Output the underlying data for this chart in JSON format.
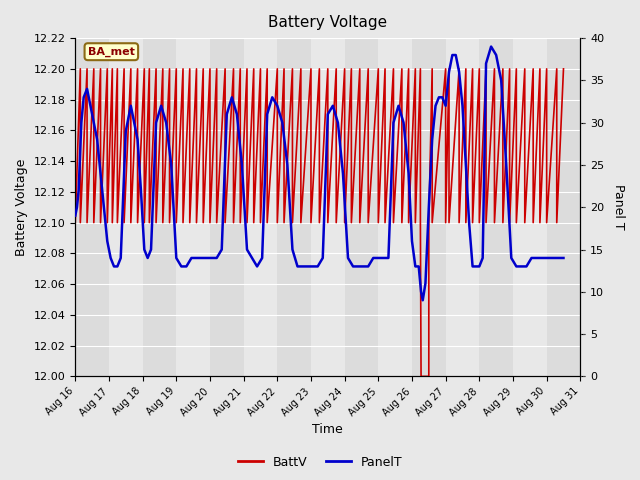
{
  "title": "Battery Voltage",
  "xlabel": "Time",
  "ylabel_left": "Battery Voltage",
  "ylabel_right": "Panel T",
  "annotation": "BA_met",
  "xlim_days": [
    16,
    31
  ],
  "ylim_left": [
    12.0,
    12.22
  ],
  "ylim_right": [
    0,
    40
  ],
  "yticks_left": [
    12.0,
    12.02,
    12.04,
    12.06,
    12.08,
    12.1,
    12.12,
    12.14,
    12.16,
    12.18,
    12.2,
    12.22
  ],
  "yticks_right": [
    0,
    5,
    10,
    15,
    20,
    25,
    30,
    35,
    40
  ],
  "xtick_labels": [
    "Aug 16",
    "Aug 17",
    "Aug 18",
    "Aug 19",
    "Aug 20",
    "Aug 21",
    "Aug 22",
    "Aug 23",
    "Aug 24",
    "Aug 25",
    "Aug 26",
    "Aug 27",
    "Aug 28",
    "Aug 29",
    "Aug 30",
    "Aug 31"
  ],
  "batt_color": "#cc0000",
  "panel_color": "#0000cc",
  "bg_color": "#e8e8e8",
  "plot_bg_color": "#f0f0f0",
  "band_colors": [
    "#dcdcdc",
    "#e8e8e8"
  ],
  "legend_batt": "BattV",
  "legend_panel": "PanelT",
  "batt_lw": 1.2,
  "panel_lw": 1.8,
  "batt_data": {
    "x": [
      16.0,
      16.0,
      16.15,
      16.15,
      16.35,
      16.35,
      16.55,
      16.55,
      16.75,
      16.75,
      16.95,
      16.95,
      17.1,
      17.1,
      17.25,
      17.25,
      17.45,
      17.45,
      17.65,
      17.65,
      17.85,
      17.85,
      18.05,
      18.05,
      18.2,
      18.2,
      18.4,
      18.4,
      18.6,
      18.6,
      18.8,
      18.8,
      19.0,
      19.0,
      19.2,
      19.2,
      19.4,
      19.4,
      19.6,
      19.6,
      19.8,
      19.8,
      20.0,
      20.0,
      20.2,
      20.2,
      20.45,
      20.45,
      20.7,
      20.7,
      20.9,
      20.9,
      21.1,
      21.1,
      21.3,
      21.3,
      21.5,
      21.5,
      21.7,
      21.7,
      22.0,
      22.0,
      22.2,
      22.2,
      22.45,
      22.45,
      22.7,
      22.7,
      23.0,
      23.0,
      23.25,
      23.25,
      23.5,
      23.5,
      23.75,
      23.75,
      24.0,
      24.0,
      24.2,
      24.2,
      24.45,
      24.45,
      24.7,
      24.7,
      25.0,
      25.0,
      25.2,
      25.2,
      25.45,
      25.45,
      25.7,
      25.7,
      25.9,
      25.9,
      26.1,
      26.1,
      26.25,
      26.25,
      26.27,
      26.27,
      26.5,
      26.5,
      26.6,
      26.6,
      27.0,
      27.0,
      27.1,
      27.1,
      27.4,
      27.4,
      27.6,
      27.6,
      27.8,
      27.8,
      28.0,
      28.0,
      28.2,
      28.2,
      28.45,
      28.45,
      28.7,
      28.7,
      28.9,
      28.9,
      29.1,
      29.1,
      29.35,
      29.35,
      29.6,
      29.6,
      29.8,
      29.8,
      30.0,
      30.0,
      30.3,
      30.3,
      30.5,
      30.5
    ],
    "y": [
      12.1,
      12.1,
      12.2,
      12.1,
      12.2,
      12.1,
      12.2,
      12.1,
      12.2,
      12.1,
      12.2,
      12.1,
      12.2,
      12.1,
      12.2,
      12.1,
      12.2,
      12.1,
      12.2,
      12.1,
      12.2,
      12.1,
      12.2,
      12.1,
      12.2,
      12.1,
      12.2,
      12.1,
      12.2,
      12.1,
      12.2,
      12.1,
      12.2,
      12.1,
      12.2,
      12.1,
      12.2,
      12.1,
      12.2,
      12.1,
      12.2,
      12.1,
      12.2,
      12.1,
      12.2,
      12.1,
      12.2,
      12.1,
      12.2,
      12.1,
      12.2,
      12.1,
      12.2,
      12.1,
      12.2,
      12.1,
      12.2,
      12.1,
      12.2,
      12.1,
      12.2,
      12.1,
      12.2,
      12.1,
      12.2,
      12.1,
      12.2,
      12.1,
      12.2,
      12.1,
      12.2,
      12.1,
      12.2,
      12.1,
      12.2,
      12.1,
      12.2,
      12.1,
      12.2,
      12.1,
      12.2,
      12.1,
      12.2,
      12.1,
      12.2,
      12.1,
      12.2,
      12.1,
      12.2,
      12.1,
      12.2,
      12.1,
      12.2,
      12.1,
      12.2,
      12.1,
      12.2,
      12.1,
      12.0,
      12.0,
      12.0,
      12.1,
      12.2,
      12.1,
      12.2,
      12.1,
      12.2,
      12.1,
      12.2,
      12.1,
      12.2,
      12.1,
      12.2,
      12.1,
      12.2,
      12.1,
      12.2,
      12.1,
      12.2,
      12.1,
      12.2,
      12.1,
      12.2,
      12.1,
      12.2,
      12.1,
      12.2,
      12.1,
      12.2,
      12.1,
      12.2,
      12.1,
      12.2,
      12.1,
      12.2,
      12.1,
      12.2,
      12.2
    ]
  },
  "panel_data": {
    "x": [
      16.0,
      16.05,
      16.1,
      16.18,
      16.25,
      16.35,
      16.45,
      16.55,
      16.65,
      16.75,
      16.85,
      16.95,
      17.05,
      17.15,
      17.25,
      17.35,
      17.5,
      17.65,
      17.75,
      17.85,
      17.95,
      18.05,
      18.15,
      18.25,
      18.4,
      18.55,
      18.7,
      18.85,
      19.0,
      19.15,
      19.3,
      19.45,
      19.6,
      19.75,
      19.9,
      20.05,
      20.2,
      20.35,
      20.5,
      20.65,
      20.8,
      20.95,
      21.1,
      21.25,
      21.4,
      21.55,
      21.7,
      21.85,
      22.0,
      22.15,
      22.3,
      22.45,
      22.6,
      22.75,
      22.9,
      23.05,
      23.2,
      23.35,
      23.5,
      23.65,
      23.8,
      23.95,
      24.1,
      24.25,
      24.4,
      24.55,
      24.7,
      24.85,
      25.0,
      25.15,
      25.3,
      25.45,
      25.6,
      25.75,
      25.9,
      26.0,
      26.1,
      26.2,
      26.27,
      26.32,
      26.4,
      26.5,
      26.6,
      26.7,
      26.8,
      26.9,
      27.0,
      27.1,
      27.2,
      27.3,
      27.4,
      27.5,
      27.6,
      27.7,
      27.8,
      27.9,
      28.0,
      28.1,
      28.2,
      28.35,
      28.5,
      28.65,
      28.8,
      28.95,
      29.1,
      29.25,
      29.4,
      29.55,
      29.7,
      29.85,
      30.0,
      30.15,
      30.3,
      30.5
    ],
    "y": [
      19,
      20,
      22,
      30,
      33,
      34,
      32,
      30,
      28,
      24,
      20,
      16,
      14,
      13,
      13,
      14,
      29,
      32,
      30,
      28,
      22,
      15,
      14,
      15,
      30,
      32,
      30,
      25,
      14,
      13,
      13,
      14,
      14,
      14,
      14,
      14,
      14,
      15,
      31,
      33,
      31,
      25,
      15,
      14,
      13,
      14,
      31,
      33,
      32,
      30,
      25,
      15,
      13,
      13,
      13,
      13,
      13,
      14,
      31,
      32,
      30,
      24,
      14,
      13,
      13,
      13,
      13,
      14,
      14,
      14,
      14,
      30,
      32,
      30,
      24,
      16,
      13,
      13,
      10,
      9,
      11,
      20,
      28,
      32,
      33,
      33,
      32,
      36,
      38,
      38,
      36,
      32,
      25,
      18,
      13,
      13,
      13,
      14,
      37,
      39,
      38,
      35,
      25,
      14,
      13,
      13,
      13,
      14,
      14,
      14,
      14,
      14,
      14,
      14
    ]
  }
}
